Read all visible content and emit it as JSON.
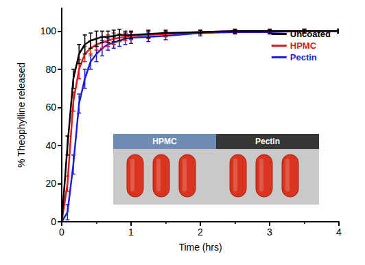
{
  "chart_data": {
    "type": "line",
    "x_label": "Time (hrs)",
    "y_label": "% Theophylline released",
    "x": [
      0,
      0.083,
      0.167,
      0.25,
      0.333,
      0.417,
      0.5,
      0.583,
      0.667,
      0.75,
      0.833,
      0.917,
      1,
      1.25,
      1.5,
      2,
      2.5,
      3,
      3.5,
      4
    ],
    "series": [
      {
        "name": "Uncoated",
        "color": "#000000",
        "values": [
          0,
          40,
          75,
          88,
          93,
          95,
          96,
          97,
          97,
          97.5,
          98,
          98,
          98,
          98.5,
          99,
          99.5,
          100,
          100,
          100,
          100
        ],
        "errors": [
          1,
          5,
          5,
          5,
          5,
          4,
          4,
          3,
          3,
          3,
          3,
          2,
          2,
          2,
          1.5,
          1,
          1,
          1,
          1,
          1
        ]
      },
      {
        "name": "HPMC",
        "color": "#e8141c",
        "values": [
          0,
          20,
          63,
          80,
          88,
          91,
          93,
          94,
          95,
          96,
          96.5,
          97,
          97.5,
          98,
          98.5,
          99.5,
          100,
          100,
          100,
          100
        ],
        "errors": [
          1,
          4,
          5,
          5,
          4,
          4,
          3,
          3,
          3,
          3,
          2,
          2,
          2,
          2,
          1.5,
          1,
          1,
          1,
          1,
          1
        ]
      },
      {
        "name": "Pectin",
        "color": "#1c1ce8",
        "values": [
          0,
          5,
          30,
          62,
          75,
          84,
          88,
          91,
          93,
          94,
          95,
          96,
          96.5,
          97,
          97.5,
          99,
          99.5,
          99.5,
          100,
          100
        ],
        "errors": [
          1,
          4,
          5,
          5,
          5,
          4,
          4,
          4,
          3,
          3,
          3,
          3,
          3,
          2.5,
          2,
          1.5,
          1,
          1,
          1,
          1
        ]
      }
    ],
    "xlim": [
      0,
      4
    ],
    "xticks": [
      0,
      1,
      2,
      3,
      4
    ],
    "ylim": [
      0,
      112
    ],
    "yticks": [
      0,
      20,
      40,
      60,
      80,
      100
    ],
    "legend": "upper right",
    "grid": false,
    "annotations": [
      "HPMC",
      "Pectin"
    ]
  }
}
